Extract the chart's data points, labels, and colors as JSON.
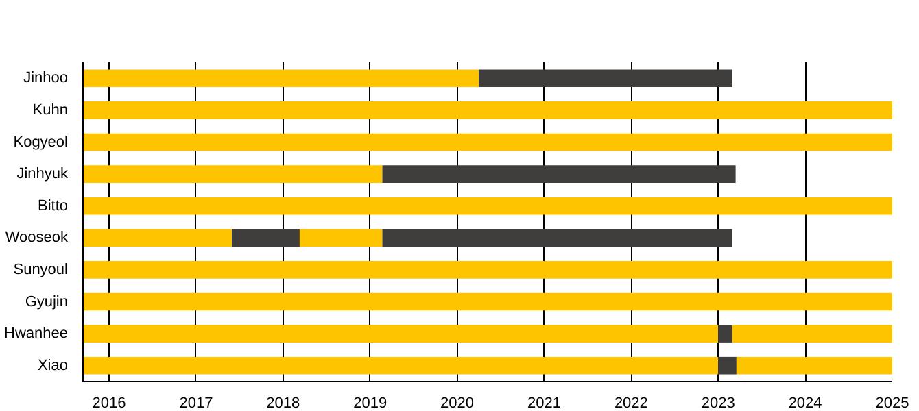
{
  "chart_data": {
    "type": "bar",
    "orientation": "horizontal",
    "categories": [
      "Jinhoo",
      "Kuhn",
      "Kogyeol",
      "Jinhyuk",
      "Bitto",
      "Wooseok",
      "Sunyoul",
      "Gyujin",
      "Hwanhee",
      "Xiao"
    ],
    "series": [
      {
        "color": "#ffc400",
        "base": [
          2015.7,
          2015.7,
          2015.7,
          2015.7,
          2015.7,
          2015.7,
          2015.7,
          2015.7,
          2015.7,
          2015.7
        ],
        "values": [
          4.55,
          9.3,
          9.3,
          3.44,
          9.3,
          1.71,
          9.3,
          9.3,
          7.3,
          7.3
        ]
      },
      {
        "color": "#403e3c",
        "base": [
          2020.25,
          null,
          null,
          2019.14,
          null,
          2017.41,
          null,
          null,
          2023.0,
          2023.0
        ],
        "values": [
          2.91,
          null,
          null,
          4.06,
          null,
          0.78,
          null,
          null,
          0.16,
          0.21
        ]
      },
      {
        "color": "#ffc400",
        "base": [
          null,
          null,
          null,
          null,
          null,
          2018.19,
          null,
          null,
          2023.16,
          2023.21
        ],
        "values": [
          null,
          null,
          null,
          null,
          null,
          0.95,
          null,
          null,
          1.84,
          1.79
        ]
      },
      {
        "color": "#403e3c",
        "base": [
          null,
          null,
          null,
          null,
          null,
          2019.14,
          null,
          null,
          null,
          null
        ],
        "values": [
          null,
          null,
          null,
          null,
          null,
          4.02,
          null,
          null,
          null,
          null
        ]
      }
    ],
    "xlim": [
      2015.7,
      2025
    ],
    "xticks": [
      2016,
      2017,
      2018,
      2019,
      2020,
      2021,
      2022,
      2023,
      2024,
      2025
    ],
    "grid": "x"
  }
}
